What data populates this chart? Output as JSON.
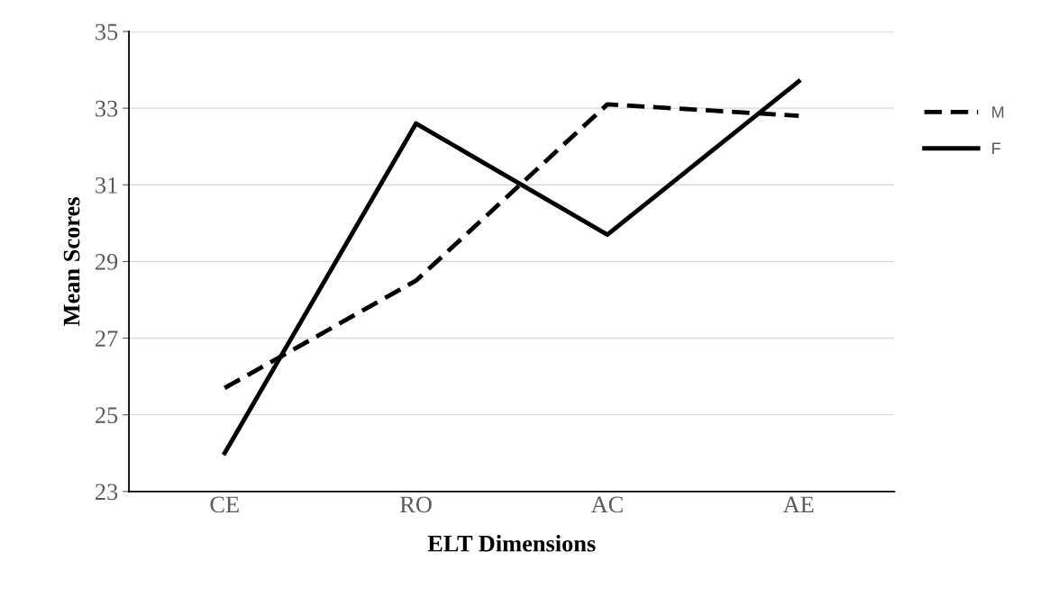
{
  "chart_data": {
    "type": "line",
    "xlabel": "ELT Dimensions",
    "ylabel": "Mean Scores",
    "categories": [
      "CE",
      "RO",
      "AC",
      "AE"
    ],
    "series": [
      {
        "name": "M",
        "color": "#000000",
        "line_style": "dashed",
        "values": [
          25.7,
          28.5,
          33.1,
          32.8
        ]
      },
      {
        "name": "F",
        "color": "#000000",
        "line_style": "solid",
        "values": [
          24.0,
          32.6,
          29.7,
          33.7
        ]
      }
    ],
    "ylim": [
      23,
      35
    ],
    "yticks": [
      23,
      25,
      27,
      29,
      31,
      33,
      35
    ],
    "grid": "y",
    "legend": "right",
    "marker": "none"
  }
}
